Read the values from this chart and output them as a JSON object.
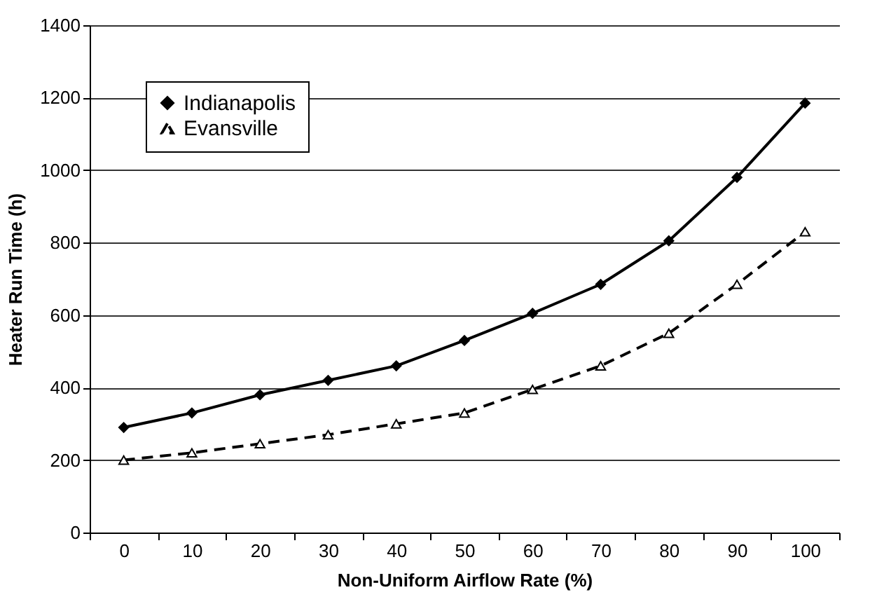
{
  "chart_data": {
    "type": "line",
    "xlabel": "Non-Uniform Airflow Rate (%)",
    "ylabel": "Heater Run Time (h)",
    "categories": [
      "0",
      "10",
      "20",
      "30",
      "40",
      "50",
      "60",
      "70",
      "80",
      "90",
      "100"
    ],
    "series": [
      {
        "name": "Indianapolis",
        "color": "#000000",
        "marker": "diamond",
        "line_style": "solid",
        "values": [
          290,
          330,
          380,
          420,
          460,
          530,
          605,
          685,
          805,
          980,
          1185
        ]
      },
      {
        "name": "Evansville",
        "color": "#000000",
        "marker": "triangle",
        "line_style": "dashed",
        "values": [
          200,
          220,
          245,
          270,
          300,
          330,
          395,
          460,
          550,
          685,
          830
        ]
      }
    ],
    "ylim": [
      0,
      1400
    ],
    "yticks": [
      0,
      200,
      400,
      600,
      800,
      1000,
      1200,
      1400
    ],
    "grid": "y",
    "legend": "top left"
  }
}
